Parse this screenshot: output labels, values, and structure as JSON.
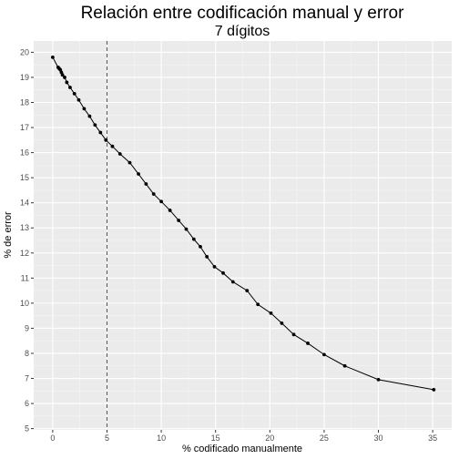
{
  "colors": {
    "panel": "#ebebeb",
    "grid_major": "#ffffff",
    "grid_minor": "#f5f5f5",
    "line": "#000000",
    "vline": "#d7191c"
  },
  "chart_data": {
    "type": "line",
    "title": "Relación entre codificación manual y error",
    "subtitle": "7 dígitos",
    "xlabel": "% codificado manualmente",
    "ylabel": "% de error",
    "xlim": [
      -1.75,
      36.75
    ],
    "ylim": [
      4.95,
      20.45
    ],
    "x_ticks": [
      0,
      5,
      10,
      15,
      20,
      25,
      30,
      35
    ],
    "y_ticks": [
      5,
      6,
      7,
      8,
      9,
      10,
      11,
      12,
      13,
      14,
      15,
      16,
      17,
      18,
      19,
      20
    ],
    "grid": true,
    "vline": {
      "x": 5,
      "style": "dashed",
      "color": "#d7191c"
    },
    "series": [
      {
        "x": [
          0.0,
          0.5,
          0.6,
          0.7,
          0.8,
          0.9,
          1.1,
          1.3,
          1.6,
          2.0,
          2.4,
          2.9,
          3.4,
          3.9,
          4.4,
          4.9,
          5.5,
          6.2,
          7.1,
          7.9,
          8.6,
          9.3,
          10.0,
          10.8,
          11.6,
          12.3,
          13.0,
          13.6,
          14.2,
          14.9,
          15.7,
          16.6,
          17.9,
          18.9,
          20.1,
          21.1,
          22.2,
          23.5,
          25.0,
          26.9,
          30.0,
          35.1
        ],
        "y": [
          19.8,
          19.4,
          19.35,
          19.3,
          19.2,
          19.1,
          19.0,
          18.8,
          18.6,
          18.35,
          18.1,
          17.75,
          17.45,
          17.1,
          16.8,
          16.5,
          16.25,
          15.95,
          15.6,
          15.15,
          14.75,
          14.35,
          14.05,
          13.7,
          13.3,
          12.95,
          12.55,
          12.25,
          11.85,
          11.45,
          11.2,
          10.85,
          10.5,
          9.95,
          9.6,
          9.2,
          8.75,
          8.4,
          7.95,
          7.5,
          6.95,
          6.55
        ]
      }
    ]
  }
}
